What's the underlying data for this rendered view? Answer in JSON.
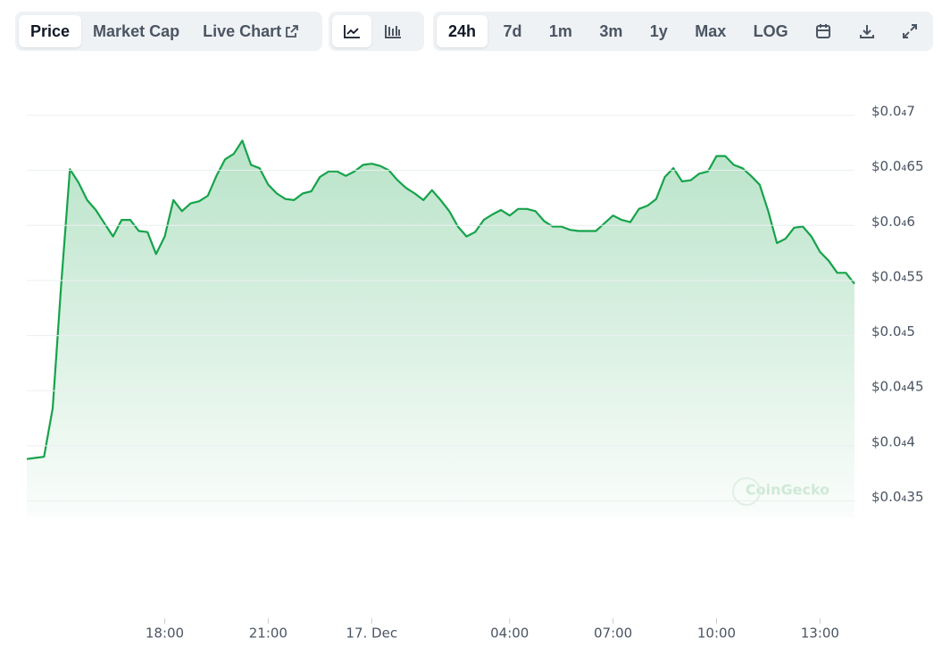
{
  "toolbar": {
    "tabs": [
      "Price",
      "Market Cap",
      "Live Chart"
    ],
    "ranges": [
      "24h",
      "7d",
      "1m",
      "3m",
      "1y",
      "Max",
      "LOG"
    ]
  },
  "chart_data": {
    "type": "area",
    "color": "#16a34a",
    "grid": true,
    "watermark": "CoinGecko",
    "values": [
      3.88e-05,
      3.89e-05,
      3.9e-05,
      4.34e-05,
      5.47e-05,
      6.51e-05,
      6.39e-05,
      6.23e-05,
      6.14e-05,
      6.02e-05,
      5.9e-05,
      6.05e-05,
      6.05e-05,
      5.95e-05,
      5.94e-05,
      5.74e-05,
      5.9e-05,
      6.23e-05,
      6.13e-05,
      6.2e-05,
      6.22e-05,
      6.27e-05,
      6.45e-05,
      6.6e-05,
      6.65e-05,
      6.77e-05,
      6.55e-05,
      6.52e-05,
      6.37e-05,
      6.29e-05,
      6.24e-05,
      6.23e-05,
      6.29e-05,
      6.31e-05,
      6.44e-05,
      6.49e-05,
      6.49e-05,
      6.45e-05,
      6.49e-05,
      6.55e-05,
      6.56e-05,
      6.54e-05,
      6.5e-05,
      6.41e-05,
      6.34e-05,
      6.29e-05,
      6.23e-05,
      6.32e-05,
      6.23e-05,
      6.13e-05,
      5.99e-05,
      5.9e-05,
      5.94e-05,
      6.05e-05,
      6.1e-05,
      6.14e-05,
      6.09e-05,
      6.15e-05,
      6.15e-05,
      6.13e-05,
      6.04e-05,
      5.99e-05,
      5.99e-05,
      5.96e-05,
      5.95e-05,
      5.95e-05,
      5.95e-05,
      6.02e-05,
      6.09e-05,
      6.05e-05,
      6.03e-05,
      6.15e-05,
      6.18e-05,
      6.24e-05,
      6.44e-05,
      6.52e-05,
      6.4e-05,
      6.41e-05,
      6.47e-05,
      6.49e-05,
      6.63e-05,
      6.63e-05,
      6.55e-05,
      6.52e-05,
      6.45e-05,
      6.37e-05,
      6.13e-05,
      5.84e-05,
      5.88e-05,
      5.98e-05,
      5.99e-05,
      5.9e-05,
      5.76e-05,
      5.68e-05,
      5.57e-05,
      5.57e-05,
      5.47e-05
    ],
    "xlim": [
      0,
      96
    ],
    "xticks": [
      {
        "value": 16,
        "label": "18:00"
      },
      {
        "value": 28,
        "label": "21:00"
      },
      {
        "value": 40,
        "label": "17. Dec"
      },
      {
        "value": 56,
        "label": "04:00"
      },
      {
        "value": 68,
        "label": "07:00"
      },
      {
        "value": 80,
        "label": "10:00"
      },
      {
        "value": 92,
        "label": "13:00"
      }
    ],
    "ylim": [
      3.35e-05,
      7e-05
    ],
    "yticks": [
      {
        "value": 7e-05,
        "label": "$0.0₄7"
      },
      {
        "value": 6.5e-05,
        "label": "$0.0₄65"
      },
      {
        "value": 6e-05,
        "label": "$0.0₄6"
      },
      {
        "value": 5.5e-05,
        "label": "$0.0₄55"
      },
      {
        "value": 5e-05,
        "label": "$0.0₄5"
      },
      {
        "value": 4.5e-05,
        "label": "$0.0₄45"
      },
      {
        "value": 4e-05,
        "label": "$0.0₄4"
      },
      {
        "value": 3.5e-05,
        "label": "$0.0₄35"
      }
    ]
  }
}
